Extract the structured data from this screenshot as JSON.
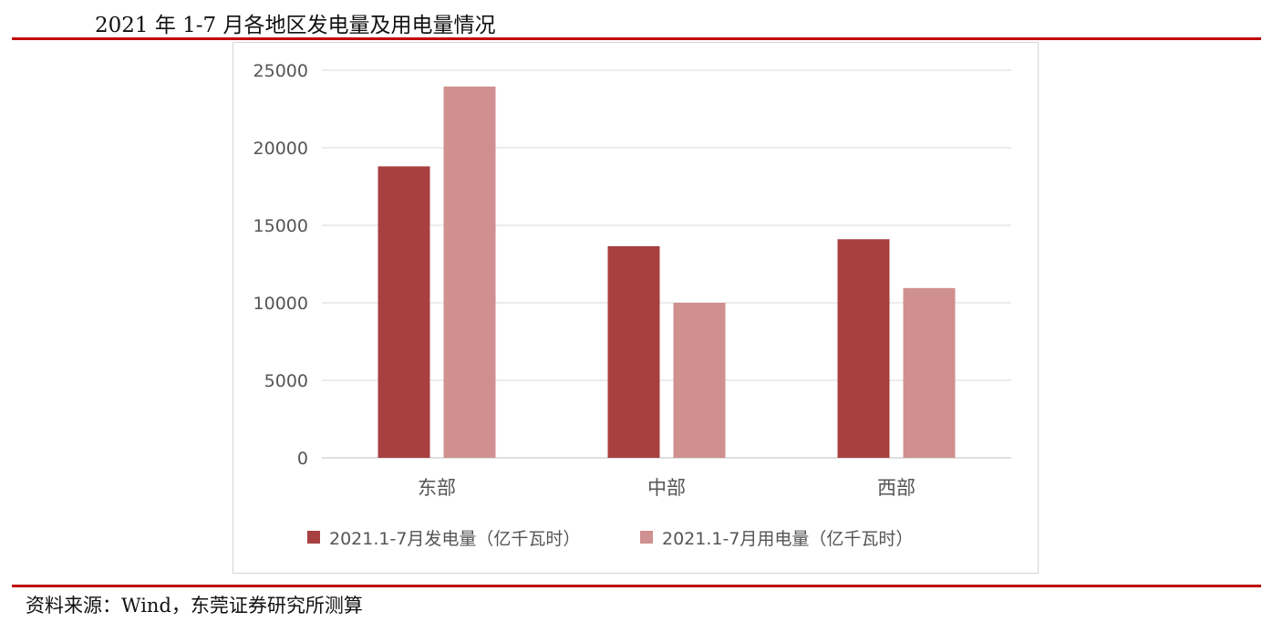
{
  "header": {
    "title": "2021 年 1-7 月各地区发电量及用电量情况"
  },
  "footer": {
    "source": "资料来源：Wind，东莞证券研究所测算"
  },
  "chart_data": {
    "type": "bar",
    "title": "",
    "xlabel": "",
    "ylabel": "",
    "categories": [
      "东部",
      "中部",
      "西部"
    ],
    "series": [
      {
        "name": "2021.1-7月发电量（亿千瓦时）",
        "color": "#a84040",
        "values": [
          18800,
          13650,
          14100
        ]
      },
      {
        "name": "2021.1-7月用电量（亿千瓦时）",
        "color": "#d09090",
        "values": [
          23950,
          10000,
          10950
        ]
      }
    ],
    "ylim": [
      0,
      25000
    ],
    "yticks": [
      0,
      5000,
      10000,
      15000,
      20000,
      25000
    ],
    "grid": true,
    "legend_position": "bottom"
  }
}
